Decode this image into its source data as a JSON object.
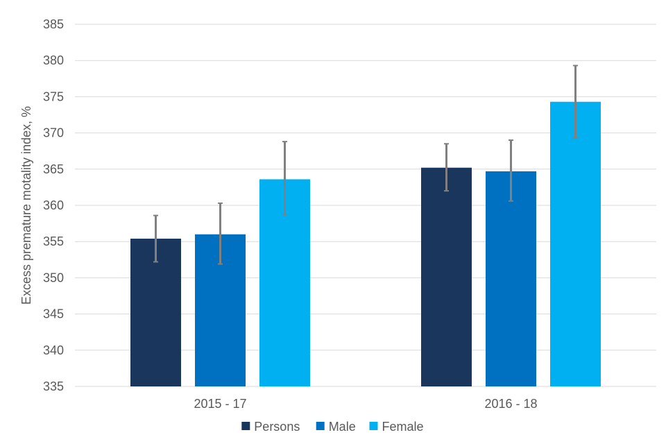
{
  "chart_data": {
    "type": "bar",
    "title": "",
    "xlabel": "",
    "ylabel": "Excess premature motality index, %",
    "ylim": [
      335,
      385
    ],
    "ytick_step": 5,
    "grid": true,
    "legend_position": "bottom",
    "categories": [
      "2015 - 17",
      "2016 - 18"
    ],
    "series": [
      {
        "name": "Persons",
        "color": "#1a365d",
        "values": [
          355.4,
          365.2
        ],
        "error_low": [
          352.2,
          362.0
        ],
        "error_high": [
          358.6,
          368.5
        ]
      },
      {
        "name": "Male",
        "color": "#0070c0",
        "values": [
          356.0,
          364.7
        ],
        "error_low": [
          351.9,
          360.6
        ],
        "error_high": [
          360.3,
          369.0
        ]
      },
      {
        "name": "Female",
        "color": "#00b0f0",
        "values": [
          363.6,
          374.3
        ],
        "error_low": [
          358.7,
          369.3
        ],
        "error_high": [
          368.8,
          379.3
        ]
      }
    ],
    "error_bar_color": "#808080",
    "gridline_color": "#d9d9d9"
  }
}
